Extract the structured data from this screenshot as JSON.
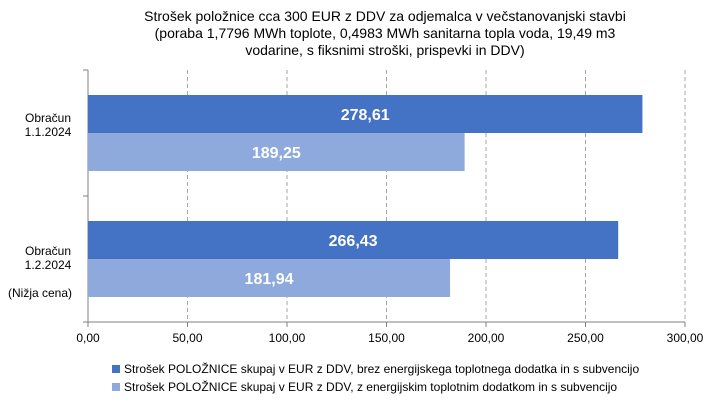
{
  "chart_data": {
    "type": "bar",
    "orientation": "horizontal",
    "title_lines": [
      "Strošek položnice cca 300 EUR z DDV za odjemalca v večstanovanjski stavbi",
      "(poraba 1,7796 MWh toplote, 0,4983 MWh sanitarna topla voda, 19,49 m3",
      "vodarine, s fiksnimi stroški, prispevki in DDV)"
    ],
    "categories": [
      {
        "lines": [
          "Obračun",
          "1.1.2024"
        ],
        "note": ""
      },
      {
        "lines": [
          "Obračun",
          "1.2.2024"
        ],
        "note": "(Nižja cena)"
      }
    ],
    "series": [
      {
        "name": "Strošek POLOŽNICE skupaj v EUR z DDV, brez energijskega toplotnega dodatka in s subvencijo",
        "color": "#4472C4",
        "values": [
          278.61,
          266.43
        ],
        "labels": [
          "278,61",
          "266,43"
        ]
      },
      {
        "name": "Strošek POLOŽNICE skupaj v EUR z DDV, z energijskim toplotnim dodatkom in s subvencijo",
        "color": "#8EA9DB",
        "values": [
          189.25,
          181.94
        ],
        "labels": [
          "189,25",
          "181,94"
        ]
      }
    ],
    "x_ticks": [
      0,
      50,
      100,
      150,
      200,
      250,
      300
    ],
    "x_tick_labels": [
      "0,00",
      "50,00",
      "100,00",
      "150,00",
      "200,00",
      "250,00",
      "300,00"
    ],
    "xlim": [
      0,
      300
    ],
    "grid": "vertical dashed",
    "legend_position": "bottom"
  }
}
